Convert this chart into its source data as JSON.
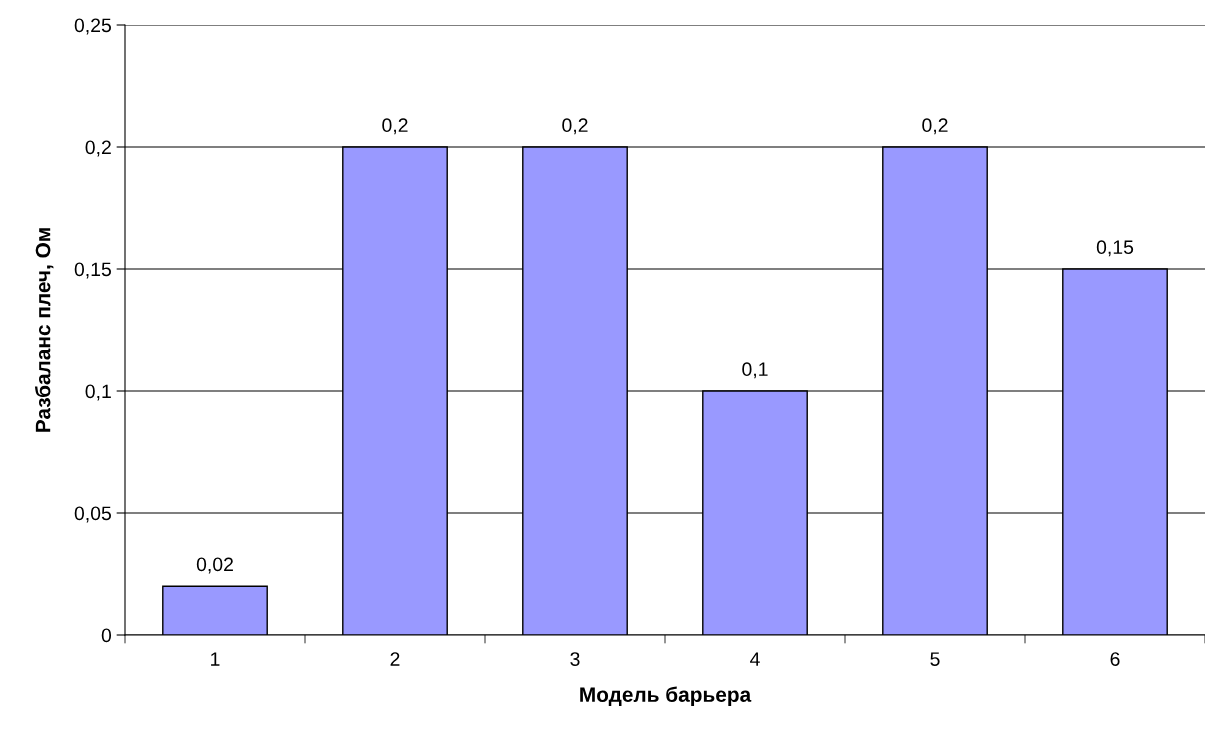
{
  "chart_data": {
    "type": "bar",
    "xlabel": "Модель барьера",
    "ylabel": "Разбаланс плеч, Ом",
    "categories": [
      "1",
      "2",
      "3",
      "4",
      "5",
      "6"
    ],
    "values": [
      0.02,
      0.2,
      0.2,
      0.1,
      0.2,
      0.15
    ],
    "value_labels": [
      "0,02",
      "0,2",
      "0,2",
      "0,1",
      "0,2",
      "0,15"
    ],
    "color": "#9999ff",
    "ylim": [
      0,
      0.25
    ],
    "yticks": [
      {
        "value": 0,
        "label": "0"
      },
      {
        "value": 0.05,
        "label": "0,05"
      },
      {
        "value": 0.1,
        "label": "0,1"
      },
      {
        "value": 0.15,
        "label": "0,15"
      },
      {
        "value": 0.2,
        "label": "0,2"
      },
      {
        "value": 0.25,
        "label": "0,25"
      }
    ],
    "grid": "y",
    "legend": false
  }
}
